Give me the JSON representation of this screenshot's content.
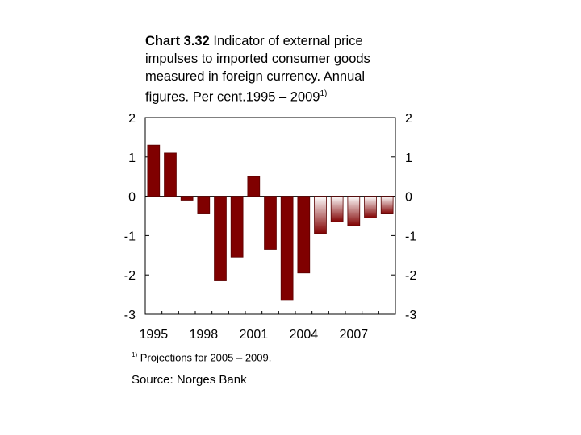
{
  "title": {
    "number": "Chart 3.32",
    "text": "Indicator of external price impulses to imported consumer goods measured in foreign currency. Annual figures. Per cent.1995 – 2009",
    "sup": "1)"
  },
  "footnote": {
    "mark": "1)",
    "text": "Projections for 2005 – 2009."
  },
  "source": "Source: Norges Bank",
  "chart_data": {
    "type": "bar",
    "categories": [
      "1995",
      "1996",
      "1997",
      "1998",
      "1999",
      "2000",
      "2001",
      "2002",
      "2003",
      "2004",
      "2005",
      "2006",
      "2007",
      "2008",
      "2009"
    ],
    "values": [
      1.3,
      1.1,
      -0.1,
      -0.45,
      -2.15,
      -1.55,
      0.5,
      -1.35,
      -2.65,
      -1.95,
      -0.95,
      -0.65,
      -0.75,
      -0.55,
      -0.45
    ],
    "projection_from": "2005",
    "x_tick_labels": [
      "1995",
      "1998",
      "2001",
      "2004",
      "2007"
    ],
    "y_ticks": [
      2,
      1,
      0,
      -1,
      -2,
      -3
    ],
    "ylim": [
      -3,
      2
    ],
    "left_axis": true,
    "right_axis": true,
    "grid": false,
    "colors": {
      "actual": "#800000",
      "projection_top": "#ffffff",
      "projection_bottom": "#800000",
      "outline": "#5a0000"
    }
  }
}
